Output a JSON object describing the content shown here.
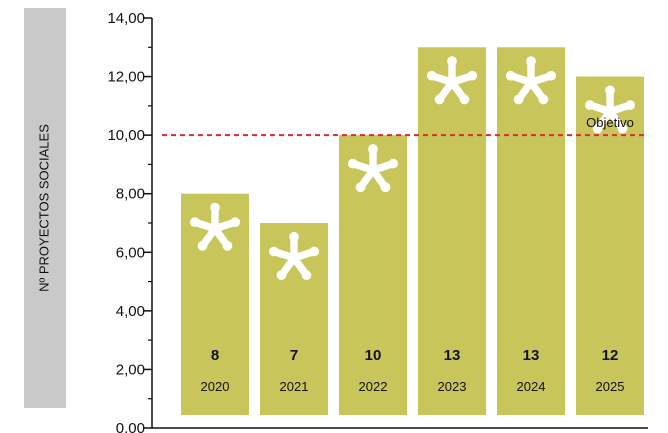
{
  "chart_data": {
    "type": "bar",
    "ylabel": "Nº PROYECTOS SOCIALES",
    "categories": [
      "2020",
      "2021",
      "2022",
      "2023",
      "2024",
      "2025"
    ],
    "values": [
      8,
      7,
      10,
      13,
      13,
      12
    ],
    "value_labels": [
      "8",
      "7",
      "10",
      "13",
      "13",
      "12"
    ],
    "ylim": [
      0,
      14
    ],
    "y_ticks": [
      {
        "value": 0,
        "label": "0.00"
      },
      {
        "value": 2,
        "label": "2,00"
      },
      {
        "value": 4,
        "label": "4,00"
      },
      {
        "value": 6,
        "label": "6,00"
      },
      {
        "value": 8,
        "label": "8,00"
      },
      {
        "value": 10,
        "label": "10,00"
      },
      {
        "value": 12,
        "label": "12,00"
      },
      {
        "value": 14,
        "label": "14,00"
      }
    ],
    "reference_line": {
      "value": 10,
      "label": "Objetivo",
      "color": "#d62f2f"
    },
    "colors": {
      "bar": "#c8c55a",
      "axis": "#111111",
      "ylabel_panel": "#c9c9c9",
      "text": "#111111",
      "asterisk": "#ffffff"
    },
    "icon": "asterisk-icon",
    "grid": false
  }
}
